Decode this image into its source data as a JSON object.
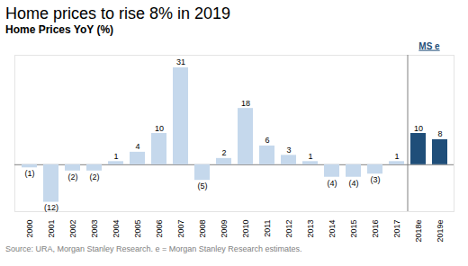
{
  "chart_data": {
    "type": "bar",
    "title": "Home prices to rise 8% in 2019",
    "ylabel": "Home Prices YoY (%)",
    "source": "Source: URA, Morgan Stanley Research. e = Morgan Stanley Research estimates.",
    "categories": [
      "2000",
      "2001",
      "2002",
      "2003",
      "2004",
      "2005",
      "2006",
      "2007",
      "2008",
      "2009",
      "2010",
      "2011",
      "2012",
      "2013",
      "2014",
      "2015",
      "2016",
      "2017",
      "2018e",
      "2019e"
    ],
    "values": [
      -1,
      -12,
      -2,
      -2,
      1,
      4,
      10,
      31,
      -5,
      2,
      18,
      6,
      3,
      1,
      -4,
      -4,
      -3,
      1,
      10,
      8
    ],
    "value_labels": [
      "(1)",
      "(12)",
      "(2)",
      "(2)",
      "1",
      "4",
      "10",
      "31",
      "(5)",
      "2",
      "18",
      "6",
      "3",
      "1",
      "(4)",
      "(4)",
      "(3)",
      "1",
      "10",
      "8"
    ],
    "colors": [
      "#c5d8ec",
      "#c5d8ec",
      "#c5d8ec",
      "#c5d8ec",
      "#c5d8ec",
      "#c5d8ec",
      "#c5d8ec",
      "#c5d8ec",
      "#c5d8ec",
      "#c5d8ec",
      "#c5d8ec",
      "#c5d8ec",
      "#c5d8ec",
      "#c5d8ec",
      "#c5d8ec",
      "#c5d8ec",
      "#c5d8ec",
      "#c5d8ec",
      "#1f4e79",
      "#1f4e79"
    ],
    "annotations": [
      {
        "text": "MS e",
        "x": "2018e",
        "color": "#1f4e79"
      }
    ],
    "ylim": [
      -15,
      35
    ],
    "data_labels": true,
    "tick_labels": "x",
    "grid": false
  }
}
